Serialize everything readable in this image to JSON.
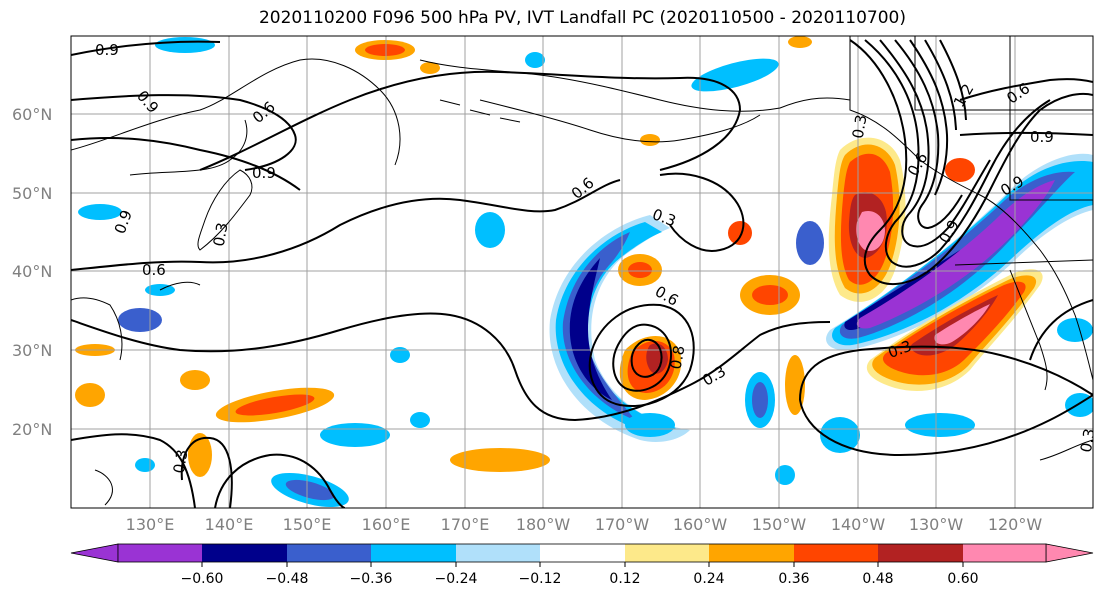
{
  "title": "2020110200 F096 500 hPa PV, IVT Landfall PC (2020110500 - 2020110700)",
  "lat_labels": [
    "60°N",
    "50°N",
    "40°N",
    "30°N",
    "20°N"
  ],
  "lon_labels": [
    "130°E",
    "140°E",
    "150°E",
    "160°E",
    "170°E",
    "180°W",
    "170°W",
    "160°W",
    "150°W",
    "140°W",
    "130°W",
    "120°W"
  ],
  "colorbar": {
    "colors": [
      "#9a33d4",
      "#00008b",
      "#3a5fcd",
      "#00bfff",
      "#b0e0fa",
      "#ffffff",
      "#ffffff",
      "#fde98a",
      "#ffa500",
      "#ff4500",
      "#b22222",
      "#ff88b0"
    ],
    "tick_labels": [
      "−0.60",
      "−0.48",
      "−0.36",
      "−0.24",
      "−0.12",
      "0.12",
      "0.24",
      "0.36",
      "0.48",
      "0.60"
    ]
  },
  "contour_labels": [
    "0.9",
    "0.9",
    "0.6",
    "0.9",
    "0.9",
    "0.3",
    "0.6",
    "0.6",
    "0.3",
    "0.6",
    "0.8",
    "0.3",
    "0.3",
    "0.6",
    "0.9",
    "1.2",
    "0.6",
    "0.9",
    "0.9",
    "0.3",
    "0.3",
    "0.3"
  ]
}
